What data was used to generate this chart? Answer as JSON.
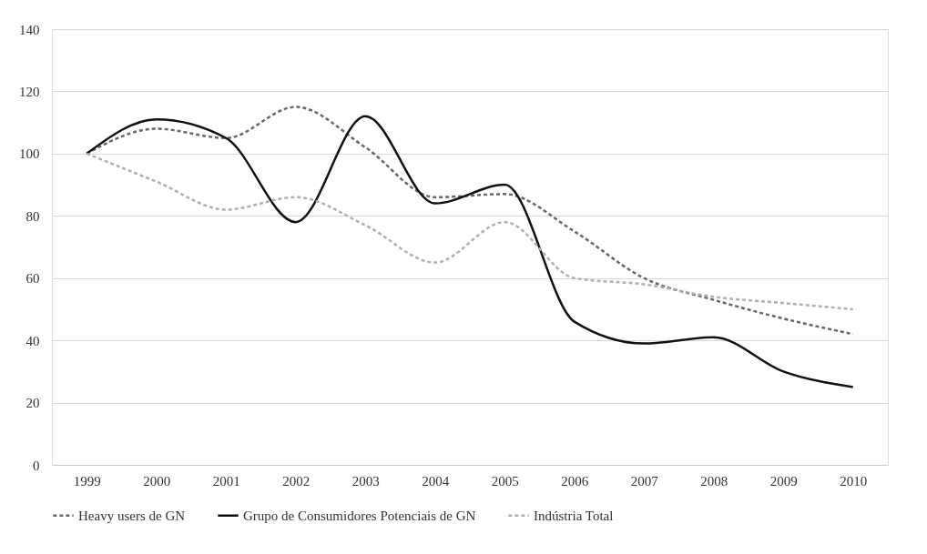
{
  "chart_data": {
    "type": "line",
    "categories": [
      "1999",
      "2000",
      "2001",
      "2002",
      "2003",
      "2004",
      "2005",
      "2006",
      "2007",
      "2008",
      "2009",
      "2010"
    ],
    "ylim": [
      0,
      140
    ],
    "yticks": [
      0,
      20,
      40,
      60,
      80,
      100,
      120,
      140
    ],
    "grid": "y",
    "legend": "bottom",
    "marker": "none",
    "series": [
      {
        "name": "Heavy users de GN",
        "color": "#666666",
        "line_style": "dashed",
        "values": [
          100,
          108,
          105,
          115,
          102,
          86,
          87,
          75,
          60,
          53,
          47,
          42
        ]
      },
      {
        "name": "Grupo de Consumidores Potenciais de GN",
        "color": "#111111",
        "line_style": "solid",
        "values": [
          100,
          111,
          105,
          78,
          112,
          84,
          90,
          46,
          39,
          41,
          30,
          25
        ]
      },
      {
        "name": "Indústria Total",
        "color": "#b0b0b0",
        "line_style": "dashed",
        "values": [
          100,
          91,
          82,
          86,
          77,
          65,
          78,
          60,
          58,
          54,
          52,
          50
        ]
      }
    ]
  }
}
